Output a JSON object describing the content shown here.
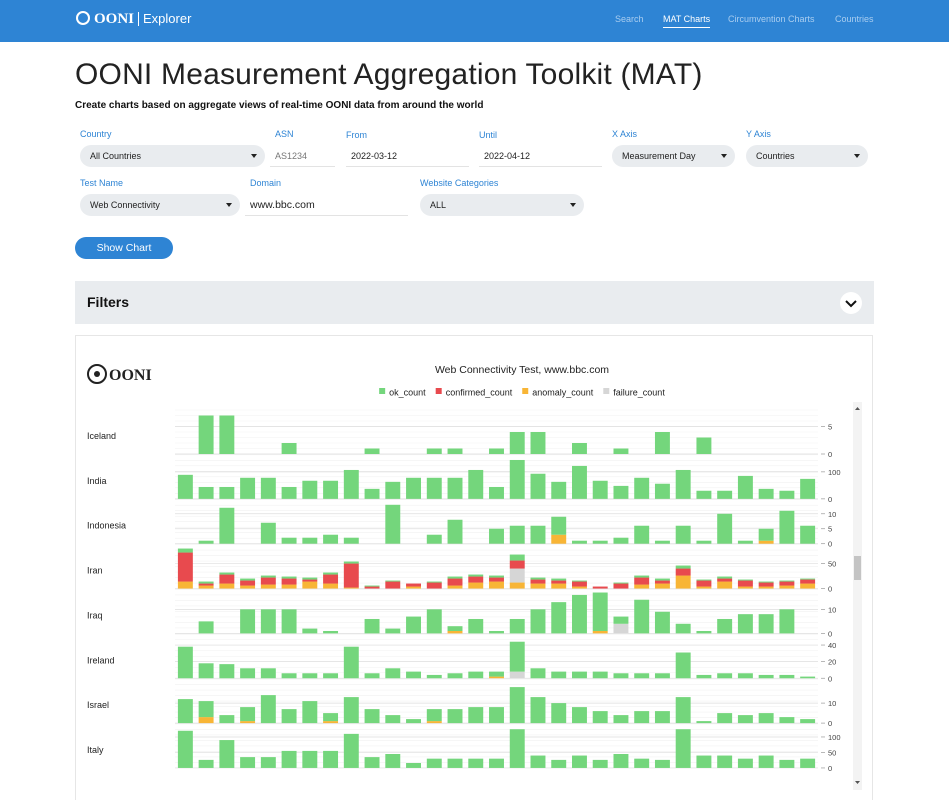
{
  "nav": {
    "brand": "OONI",
    "product": "Explorer",
    "links": [
      "Search",
      "MAT Charts",
      "Circumvention Charts",
      "Countries"
    ]
  },
  "header": {
    "title": "OONI Measurement Aggregation Toolkit (MAT)",
    "subtitle": "Create charts based on aggregate views of real-time OONI data from around the world"
  },
  "form": {
    "fields": [
      {
        "label": "Country",
        "value": "All Countries"
      },
      {
        "label": "ASN",
        "placeholder": "AS1234"
      },
      {
        "label": "From",
        "value": "2022-03-12"
      },
      {
        "label": "Until",
        "value": "2022-04-12"
      },
      {
        "label": "X Axis",
        "value": "Measurement Day"
      },
      {
        "label": "Y Axis",
        "value": "Countries"
      },
      {
        "label": "Test Name",
        "value": "Web Connectivity"
      },
      {
        "label": "Domain",
        "value": "www.bbc.com"
      },
      {
        "label": "Website Categories",
        "value": "ALL"
      }
    ],
    "button": "Show Chart"
  },
  "filters": {
    "title": "Filters"
  },
  "chart_data": {
    "type": "stacked-bar-facets",
    "logo": "OONI",
    "title": "Web Connectivity Test, www.bbc.com",
    "series": [
      {
        "name": "ok_count",
        "color": "#74d67c"
      },
      {
        "name": "confirmed_count",
        "color": "#e84a4e"
      },
      {
        "name": "anomaly_count",
        "color": "#f8b536"
      },
      {
        "name": "failure_count",
        "color": "#d6d6d6"
      }
    ],
    "facets": [
      {
        "name": "Iceland",
        "ylim": [
          0,
          8
        ],
        "yticks": [
          0,
          5
        ],
        "values": [
          [
            0,
            7,
            7,
            0,
            0,
            2,
            0,
            0,
            0,
            1,
            0,
            0,
            1,
            1,
            0,
            1,
            4,
            4,
            0,
            2,
            0,
            1,
            0,
            4,
            0,
            3,
            0,
            0,
            0,
            0,
            0
          ],
          null,
          null,
          null
        ]
      },
      {
        "name": "India",
        "ylim": [
          0,
          163
        ],
        "yticks": [
          0,
          100
        ],
        "values": [
          [
            89,
            44,
            44,
            78,
            78,
            44,
            67,
            67,
            107,
            37,
            63,
            78,
            78,
            78,
            107,
            44,
            144,
            93,
            63,
            122,
            67,
            48,
            78,
            56,
            107,
            30,
            30,
            85,
            37,
            30,
            74
          ],
          null,
          null,
          null
        ]
      },
      {
        "name": "Indonesia",
        "ylim": [
          0,
          14.7
        ],
        "yticks": [
          0,
          5,
          10
        ],
        "values": [
          [
            0,
            1,
            12,
            0,
            7,
            2,
            2,
            3,
            2,
            0,
            13,
            0,
            3,
            8,
            0,
            5,
            6,
            6,
            6,
            1,
            1,
            2,
            6,
            1,
            6,
            1,
            10,
            1,
            4,
            11,
            6
          ],
          null,
          [
            0,
            0,
            0,
            0,
            0,
            0,
            0,
            0,
            0,
            0,
            0,
            0,
            0,
            0,
            0,
            0,
            0,
            0,
            3,
            0,
            0,
            0,
            0,
            0,
            0,
            0,
            0,
            0,
            1,
            0,
            0
          ],
          null
        ]
      },
      {
        "name": "Iran",
        "ylim": [
          0,
          88
        ],
        "yticks": [
          0,
          50
        ],
        "values": [
          [
            8,
            4,
            4,
            4,
            4,
            4,
            4,
            4,
            4,
            2,
            2,
            0,
            2,
            4,
            4,
            4,
            12,
            4,
            4,
            2,
            0,
            2,
            4,
            4,
            6,
            2,
            4,
            2,
            2,
            2,
            2
          ],
          [
            58,
            4,
            18,
            10,
            14,
            12,
            4,
            18,
            48,
            4,
            14,
            6,
            12,
            14,
            12,
            8,
            16,
            8,
            6,
            10,
            4,
            10,
            14,
            6,
            14,
            12,
            6,
            12,
            8,
            8,
            8
          ],
          [
            14,
            6,
            10,
            6,
            8,
            8,
            14,
            10,
            2,
            0,
            0,
            4,
            0,
            6,
            12,
            14,
            12,
            10,
            10,
            4,
            0,
            0,
            8,
            10,
            26,
            4,
            14,
            4,
            4,
            6,
            10
          ],
          [
            0,
            0,
            0,
            0,
            0,
            0,
            0,
            0,
            0,
            0,
            0,
            0,
            0,
            0,
            0,
            0,
            28,
            0,
            0,
            0,
            0,
            0,
            0,
            0,
            0,
            0,
            0,
            0,
            0,
            0,
            0
          ]
        ]
      },
      {
        "name": "Iraq",
        "ylim": [
          0,
          18.3
        ],
        "yticks": [
          0,
          10
        ],
        "values": [
          [
            0,
            5,
            0,
            10,
            10,
            10,
            2,
            1,
            0,
            6,
            2,
            7,
            10,
            2,
            6,
            1,
            6,
            10,
            13,
            16,
            16,
            3,
            14,
            9,
            4,
            1,
            6,
            8,
            8,
            10,
            0
          ],
          null,
          [
            0,
            0,
            0,
            0,
            0,
            0,
            0,
            0,
            0,
            0,
            0,
            0,
            0,
            1,
            0,
            0,
            0,
            0,
            0,
            0,
            1,
            0,
            0,
            0,
            0,
            0,
            0,
            0,
            0,
            0,
            0
          ],
          [
            0,
            0,
            0,
            0,
            0,
            0,
            0,
            0,
            0,
            0,
            0,
            0,
            0,
            0,
            0,
            0,
            0,
            0,
            0,
            0,
            0,
            4,
            0,
            0,
            0,
            0,
            0,
            0,
            0,
            0,
            0
          ]
        ]
      },
      {
        "name": "Ireland",
        "ylim": [
          0,
          53
        ],
        "yticks": [
          0,
          20,
          40
        ],
        "values": [
          [
            38,
            18,
            17,
            12,
            12,
            6,
            6,
            6,
            38,
            6,
            12,
            8,
            4,
            6,
            8,
            6,
            36,
            12,
            8,
            8,
            8,
            6,
            6,
            6,
            31,
            4,
            6,
            6,
            4,
            4,
            2
          ],
          null,
          [
            0,
            0,
            0,
            0,
            0,
            0,
            0,
            0,
            0,
            0,
            0,
            0,
            0,
            0,
            0,
            2,
            0,
            0,
            0,
            0,
            0,
            0,
            0,
            0,
            0,
            0,
            0,
            0,
            0,
            0,
            0
          ],
          [
            0,
            0,
            0,
            0,
            0,
            0,
            0,
            0,
            0,
            0,
            0,
            0,
            0,
            0,
            0,
            0,
            8,
            0,
            0,
            0,
            0,
            0,
            0,
            0,
            0,
            0,
            0,
            0,
            0,
            0,
            0
          ]
        ]
      },
      {
        "name": "Israel",
        "ylim": [
          0,
          22
        ],
        "yticks": [
          0,
          10
        ],
        "values": [
          [
            12,
            8,
            4,
            7,
            14,
            7,
            11,
            4,
            13,
            7,
            4,
            2,
            6,
            7,
            8,
            8,
            18,
            13,
            10,
            8,
            6,
            4,
            6,
            6,
            13,
            1,
            5,
            4,
            5,
            3,
            2
          ],
          null,
          [
            0,
            3,
            0,
            1,
            0,
            0,
            0,
            1,
            0,
            0,
            0,
            0,
            1,
            0,
            0,
            0,
            0,
            0,
            0,
            0,
            0,
            0,
            0,
            0,
            0,
            0,
            0,
            0,
            0,
            0,
            0
          ],
          null
        ]
      },
      {
        "name": "Italy",
        "ylim": [
          0,
          142
        ],
        "yticks": [
          0,
          50,
          100
        ],
        "values": [
          [
            120,
            26,
            90,
            35,
            35,
            55,
            55,
            55,
            110,
            35,
            45,
            16,
            30,
            30,
            30,
            30,
            125,
            40,
            26,
            40,
            26,
            45,
            30,
            26,
            125,
            40,
            40,
            30,
            40,
            26,
            30
          ],
          null,
          null,
          null
        ]
      }
    ]
  }
}
